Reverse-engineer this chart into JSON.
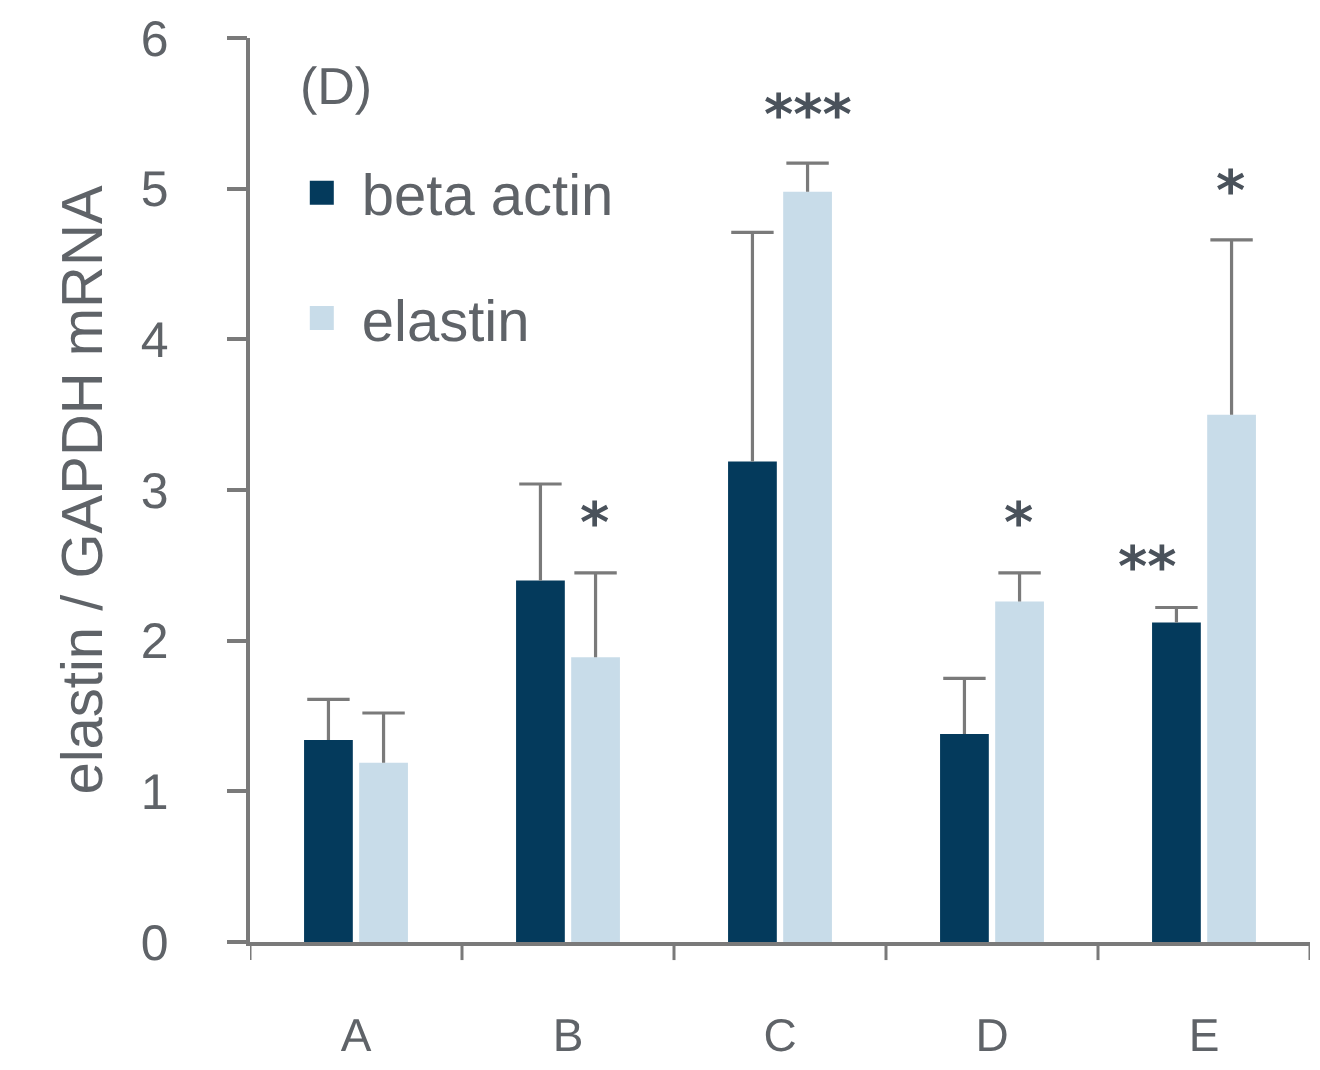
{
  "chart_data": {
    "type": "bar",
    "title": "(D)",
    "ylabel": "elastin / GAPDH mRNA",
    "categories": [
      "A",
      "B",
      "C",
      "D",
      "E"
    ],
    "series": [
      {
        "name": "beta actin",
        "color": "#043a5c",
        "values": [
          1.34,
          2.4,
          3.19,
          1.38,
          2.12
        ],
        "errors": [
          [
            1.34,
            1.61
          ],
          [
            2.4,
            3.04
          ],
          [
            3.19,
            4.71
          ],
          [
            1.38,
            1.75
          ],
          [
            2.12,
            2.22
          ]
        ]
      },
      {
        "name": "elastin",
        "color": "#c8dce9",
        "values": [
          1.19,
          1.89,
          4.98,
          2.26,
          3.5
        ],
        "errors": [
          [
            1.19,
            1.52
          ],
          [
            1.89,
            2.45
          ],
          [
            4.98,
            5.17
          ],
          [
            2.26,
            2.45
          ],
          [
            3.5,
            4.66
          ]
        ]
      }
    ],
    "ylim": [
      0,
      6
    ],
    "yticks": [
      0,
      1,
      2,
      3,
      4,
      5,
      6
    ],
    "legend": "top left",
    "annotations": [
      "*",
      "***",
      "*",
      "**",
      "*"
    ]
  }
}
